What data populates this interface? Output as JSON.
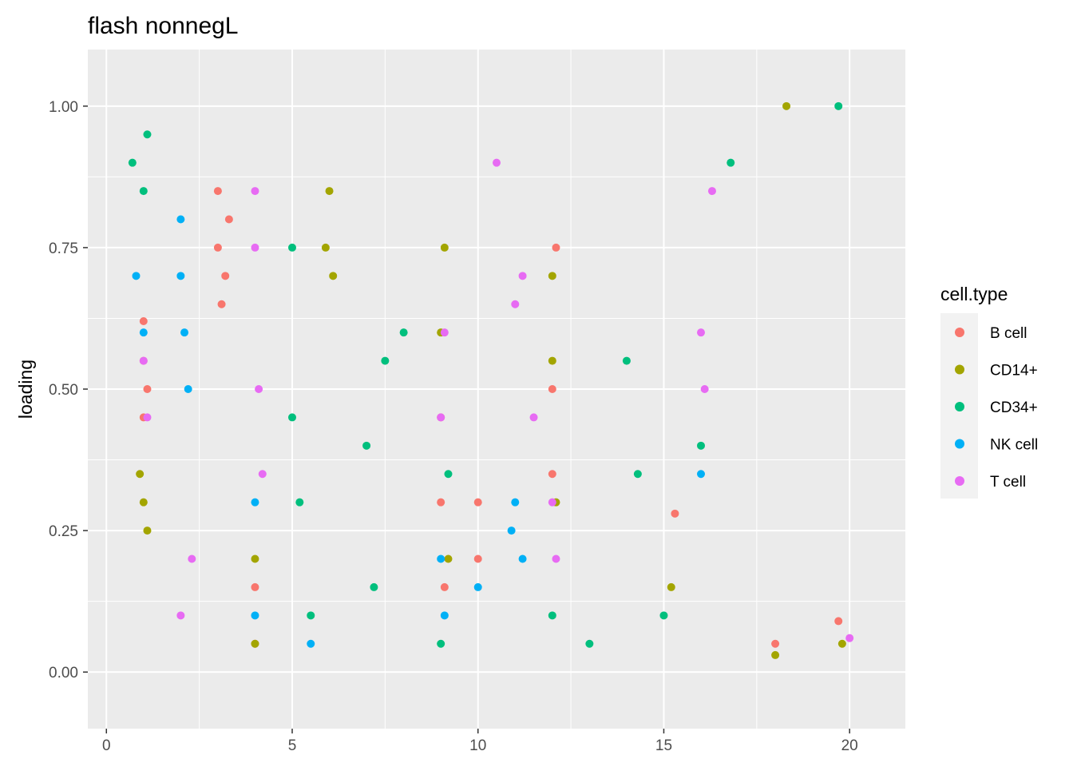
{
  "chart_data": {
    "type": "scatter",
    "title": "flash nonnegL",
    "xlabel": "",
    "ylabel": "loading",
    "xlim": [
      -0.5,
      21.5
    ],
    "ylim": [
      -0.1,
      1.1
    ],
    "x_ticks": [
      0,
      5,
      10,
      15,
      20
    ],
    "x_tick_labels": [
      "0",
      "5",
      "10",
      "15",
      "20"
    ],
    "y_ticks": [
      0,
      0.25,
      0.5,
      0.75,
      1
    ],
    "y_tick_labels": [
      "0.00",
      "0.25",
      "0.50",
      "0.75",
      "1.00"
    ],
    "grid": true,
    "legend": {
      "title": "cell.type",
      "placement": "right",
      "entries": [
        {
          "label": "B cell",
          "color": "#F8766D"
        },
        {
          "label": "CD14+",
          "color": "#A3A500"
        },
        {
          "label": "CD34+",
          "color": "#00BF7D"
        },
        {
          "label": "NK cell",
          "color": "#00B0F6"
        },
        {
          "label": "T cell",
          "color": "#E76BF3"
        }
      ]
    },
    "background_color": "#EBEBEB",
    "grid_color": "#FFFFFF",
    "series": [
      {
        "name": "B cell",
        "color": "#F8766D",
        "x": [
          1.0,
          1.0,
          1.0,
          1.1,
          3.0,
          3.0,
          3.1,
          3.2,
          3.3,
          4.0,
          4.0,
          9.0,
          9.0,
          9.1,
          10.0,
          10.0,
          12.0,
          12.0,
          12.1,
          15.3,
          18.0,
          19.7
        ],
        "y": [
          0.55,
          0.45,
          0.62,
          0.5,
          0.75,
          0.85,
          0.65,
          0.7,
          0.8,
          0.15,
          0.05,
          0.45,
          0.3,
          0.15,
          0.3,
          0.2,
          0.35,
          0.5,
          0.75,
          0.28,
          0.05,
          0.09
        ]
      },
      {
        "name": "CD14+",
        "color": "#A3A500",
        "x": [
          1.0,
          0.9,
          1.1,
          4.0,
          4.0,
          5.9,
          6.0,
          6.1,
          9.0,
          9.1,
          9.2,
          12.0,
          12.0,
          12.1,
          15.2,
          18.0,
          19.8,
          18.3
        ],
        "y": [
          0.3,
          0.35,
          0.25,
          0.05,
          0.2,
          0.75,
          0.85,
          0.7,
          0.6,
          0.75,
          0.2,
          0.55,
          0.7,
          0.3,
          0.15,
          0.03,
          0.05,
          1.0
        ]
      },
      {
        "name": "CD34+",
        "color": "#00BF7D",
        "x": [
          0.7,
          1.0,
          1.1,
          5.0,
          5.0,
          5.2,
          5.5,
          7.0,
          7.2,
          7.5,
          8.0,
          9.0,
          9.2,
          12.0,
          13.0,
          14.0,
          14.3,
          15.0,
          16.0,
          16.8,
          19.7
        ],
        "y": [
          0.9,
          0.85,
          0.95,
          0.75,
          0.45,
          0.3,
          0.1,
          0.4,
          0.15,
          0.55,
          0.6,
          0.05,
          0.35,
          0.1,
          0.05,
          0.55,
          0.35,
          0.1,
          0.4,
          0.9,
          1.0
        ]
      },
      {
        "name": "NK cell",
        "color": "#00B0F6",
        "x": [
          0.8,
          1.0,
          2.0,
          2.0,
          2.1,
          2.2,
          4.0,
          4.0,
          5.5,
          9.0,
          9.1,
          10.0,
          10.9,
          11.0,
          11.2,
          16.0
        ],
        "y": [
          0.7,
          0.6,
          0.7,
          0.8,
          0.6,
          0.5,
          0.3,
          0.1,
          0.05,
          0.2,
          0.1,
          0.15,
          0.25,
          0.3,
          0.2,
          0.35
        ]
      },
      {
        "name": "T cell",
        "color": "#E76BF3",
        "x": [
          1.0,
          1.1,
          2.0,
          2.3,
          4.0,
          4.0,
          4.1,
          4.2,
          9.0,
          9.1,
          10.5,
          11.0,
          11.2,
          11.5,
          12.0,
          12.1,
          16.0,
          16.1,
          16.3,
          20.0
        ],
        "y": [
          0.55,
          0.45,
          0.1,
          0.2,
          0.75,
          0.85,
          0.5,
          0.35,
          0.45,
          0.6,
          0.9,
          0.65,
          0.7,
          0.45,
          0.3,
          0.2,
          0.6,
          0.5,
          0.85,
          0.06
        ]
      }
    ]
  }
}
